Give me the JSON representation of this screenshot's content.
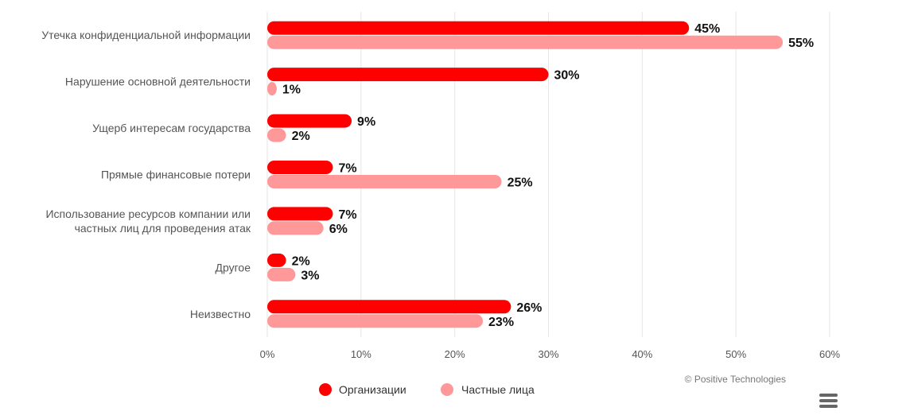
{
  "chart_data": {
    "type": "bar",
    "orientation": "horizontal",
    "categories": [
      [
        "Утечка конфиденциальной информации"
      ],
      [
        "Нарушение основной деятельности"
      ],
      [
        "Ущерб интересам государства"
      ],
      [
        "Прямые финансовые потери"
      ],
      [
        "Использование ресурсов компании или",
        "частных лиц для проведения атак"
      ],
      [
        "Другое"
      ],
      [
        "Неизвестно"
      ]
    ],
    "series": [
      {
        "name": "Организации",
        "color": "#ff0000",
        "values": [
          45,
          30,
          9,
          7,
          7,
          2,
          26
        ]
      },
      {
        "name": "Частные лица",
        "color": "#ff9999",
        "values": [
          55,
          1,
          2,
          25,
          6,
          3,
          23
        ]
      }
    ],
    "xlim": [
      0,
      60
    ],
    "x_ticks": [
      0,
      10,
      20,
      30,
      40,
      50,
      60
    ],
    "tick_suffix": "%",
    "value_suffix": "%",
    "grid": true,
    "legend_position": "bottom-center",
    "credit": "© Positive Technologies"
  },
  "menu": {
    "icon": "hamburger-menu-icon"
  }
}
